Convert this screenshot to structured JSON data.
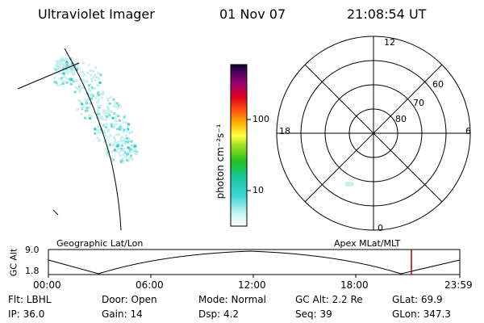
{
  "header": {
    "instrument": "Ultraviolet Imager",
    "date": "01 Nov 07",
    "time": "21:08:54 UT"
  },
  "geographic_panel": {
    "label": "Geographic Lat/Lon"
  },
  "apex_panel": {
    "label": "Apex MLat/MLT",
    "mlt_labels": {
      "top": "12",
      "bottom": "0",
      "left": "18",
      "right": "6"
    },
    "lat_labels": [
      "60",
      "70",
      "80"
    ]
  },
  "colorbar": {
    "unit_label": "photon cm⁻²s⁻¹",
    "ticks": [
      "100",
      "10"
    ]
  },
  "altitude_strip": {
    "axis_label": "GC Alt",
    "y_ticks": [
      "9.0",
      "1.8"
    ],
    "x_ticks": [
      "00:00",
      "06:00",
      "12:00",
      "18:00",
      "23:59"
    ]
  },
  "info_rows": [
    [
      "Flt: LBHL",
      "Door: Open",
      "Mode: Normal",
      "GC Alt: 2.2 Re",
      "GLat: 69.9"
    ],
    [
      "IP: 36.0",
      "Gain: 14",
      "Dsp: 4.2",
      "Seq: 39",
      "GLon: 347.3"
    ]
  ],
  "colors": {
    "aurora_light": "#c8f0f0",
    "aurora_mid": "#7adcdc",
    "aurora_bright": "#2ec8c8",
    "current_time_marker": "#b00000"
  }
}
